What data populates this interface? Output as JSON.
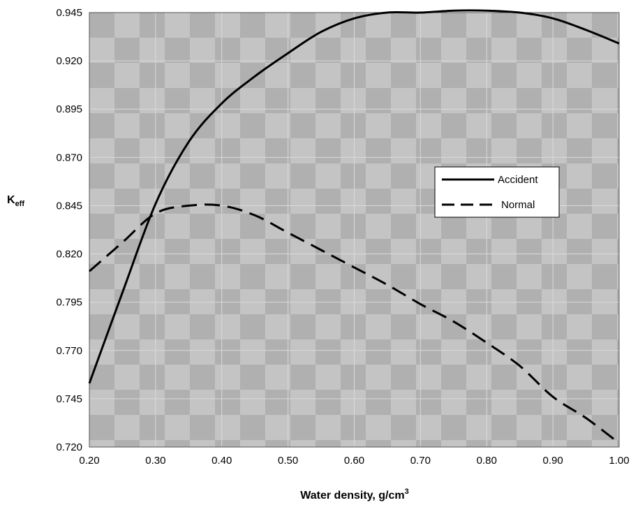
{
  "chart_data": {
    "type": "line",
    "xlabel": "Water density, g/cm",
    "xlabel_superscript": "3",
    "ylabel": "K",
    "ylabel_subscript": "eff",
    "xlim": [
      0.2,
      1.0
    ],
    "ylim": [
      0.72,
      0.945
    ],
    "x_ticks": [
      "0.20",
      "0.30",
      "0.40",
      "0.50",
      "0.60",
      "0.70",
      "0.80",
      "0.90",
      "1.00"
    ],
    "y_ticks": [
      "0.720",
      "0.745",
      "0.770",
      "0.795",
      "0.820",
      "0.845",
      "0.870",
      "0.895",
      "0.920",
      "0.945"
    ],
    "grid": true,
    "legend_position": "right",
    "series": [
      {
        "name": "Accident",
        "style": "solid",
        "color": "#000000",
        "x": [
          0.2,
          0.25,
          0.3,
          0.35,
          0.4,
          0.45,
          0.5,
          0.55,
          0.6,
          0.65,
          0.7,
          0.75,
          0.8,
          0.85,
          0.9,
          0.95,
          1.0
        ],
        "y": [
          0.753,
          0.8,
          0.846,
          0.878,
          0.898,
          0.912,
          0.924,
          0.935,
          0.942,
          0.945,
          0.945,
          0.946,
          0.946,
          0.945,
          0.942,
          0.936,
          0.929
        ]
      },
      {
        "name": "Normal",
        "style": "dashed",
        "color": "#000000",
        "x": [
          0.2,
          0.25,
          0.3,
          0.35,
          0.4,
          0.45,
          0.5,
          0.55,
          0.6,
          0.65,
          0.7,
          0.75,
          0.8,
          0.85,
          0.9,
          0.95,
          1.0
        ],
        "y": [
          0.811,
          0.826,
          0.841,
          0.845,
          0.845,
          0.84,
          0.831,
          0.822,
          0.813,
          0.804,
          0.794,
          0.785,
          0.774,
          0.762,
          0.746,
          0.735,
          0.722
        ]
      }
    ]
  },
  "colors": {
    "plot_background": "#c4c4c4",
    "plot_checker": "#b0b0b0",
    "grid": "#dadada",
    "line": "#000000",
    "legend_background": "#ffffff"
  }
}
